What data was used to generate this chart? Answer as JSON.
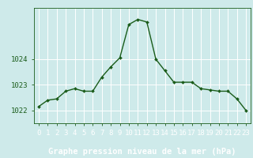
{
  "x": [
    0,
    1,
    2,
    3,
    4,
    5,
    6,
    7,
    8,
    9,
    10,
    11,
    12,
    13,
    14,
    15,
    16,
    17,
    18,
    19,
    20,
    21,
    22,
    23
  ],
  "y": [
    1022.15,
    1022.4,
    1022.45,
    1022.75,
    1022.85,
    1022.75,
    1022.75,
    1023.3,
    1023.7,
    1024.05,
    1025.35,
    1025.55,
    1025.45,
    1024.0,
    1023.55,
    1023.1,
    1023.1,
    1023.1,
    1022.85,
    1022.8,
    1022.75,
    1022.75,
    1022.45,
    1022.0
  ],
  "line_color": "#1a5c1a",
  "marker": "D",
  "marker_size": 2.0,
  "background_color": "#ceeaea",
  "grid_color": "#ffffff",
  "bottom_bar_color": "#336633",
  "xlabel": "Graphe pression niveau de la mer (hPa)",
  "xlabel_fontsize": 7.5,
  "tick_fontsize": 6.5,
  "ylim": [
    1021.5,
    1026.0
  ],
  "yticks": [
    1022,
    1023,
    1024
  ],
  "xlim": [
    -0.5,
    23.5
  ],
  "line_width": 1.0
}
